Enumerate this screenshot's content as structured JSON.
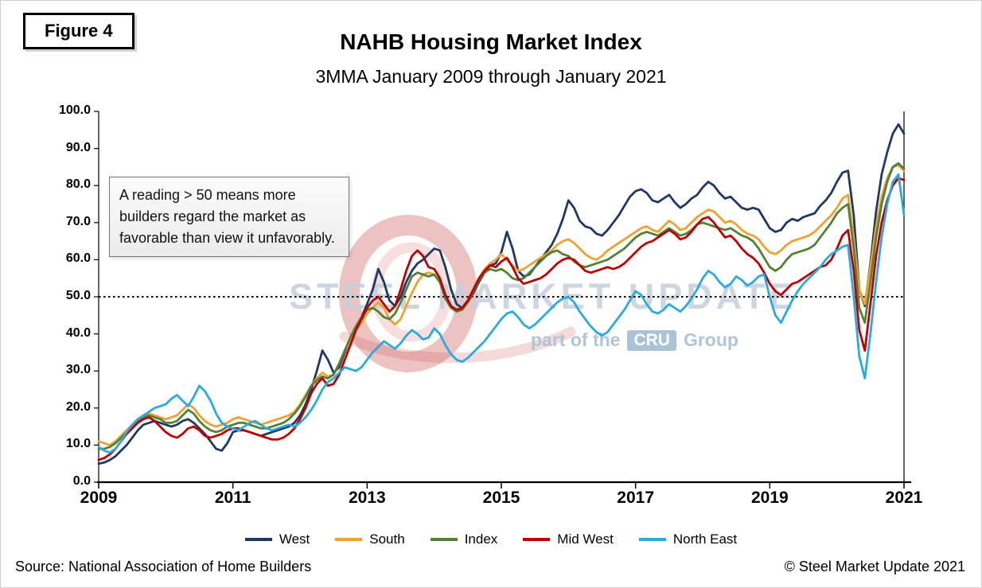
{
  "figure_label": "Figure 4",
  "title": "NAHB Housing Market Index",
  "subtitle": "3MMA January 2009 through January 2021",
  "annotation": "A reading > 50 means more builders regard the market as favorable than view it unfavorably.",
  "watermark": {
    "line1": "STEEL MARKET UPDATE",
    "line2_prefix": "part of the",
    "line2_badge": "CRU",
    "line2_suffix": "Group"
  },
  "footer": {
    "source": "Source: National Association of Home Builders",
    "copyright": "© Steel Market Update 2021"
  },
  "chart_data": {
    "type": "line",
    "title": "NAHB Housing Market Index",
    "subtitle": "3MMA January 2009 through January 2021",
    "x_start_year": 2009,
    "x_months": 145,
    "x_tick_months": [
      0,
      24,
      48,
      72,
      96,
      120,
      144
    ],
    "x_tick_labels": [
      "2009",
      "2011",
      "2013",
      "2015",
      "2017",
      "2019",
      "2021"
    ],
    "y_ticks": [
      0,
      10,
      20,
      30,
      40,
      50,
      60,
      70,
      80,
      90,
      100
    ],
    "y_tick_labels": [
      "0.0",
      "10.0",
      "20.0",
      "30.0",
      "40.0",
      "50.0",
      "60.0",
      "70.0",
      "80.0",
      "90.0",
      "100.0"
    ],
    "ylim": [
      0,
      100
    ],
    "grid": false,
    "legend_position": "bottom",
    "reference_line": {
      "value": 50,
      "style": "dotted",
      "color": "#000000"
    },
    "series": [
      {
        "name": "West",
        "color": "#1F3864",
        "values": [
          5.0,
          5.3,
          6.0,
          7.0,
          8.5,
          10.0,
          12.0,
          14.0,
          15.5,
          16.0,
          16.5,
          16.0,
          15.5,
          15.0,
          15.5,
          16.5,
          17.0,
          16.0,
          14.5,
          13.0,
          11.0,
          9.0,
          8.5,
          10.5,
          13.5,
          14.0,
          14.0,
          13.5,
          13.0,
          12.5,
          13.0,
          13.5,
          14.0,
          14.5,
          15.0,
          16.0,
          18.0,
          21.0,
          25.0,
          30.0,
          35.5,
          33.0,
          29.5,
          31.0,
          35.0,
          39.0,
          42.0,
          44.5,
          48.0,
          52.0,
          57.5,
          54.0,
          49.0,
          47.5,
          50.0,
          54.0,
          57.0,
          59.0,
          60.0,
          61.5,
          63.0,
          62.5,
          58.0,
          52.0,
          48.0,
          47.0,
          48.5,
          51.0,
          54.0,
          56.5,
          58.5,
          59.0,
          62.0,
          67.5,
          63.0,
          57.0,
          55.5,
          56.0,
          58.0,
          60.0,
          62.0,
          64.0,
          67.0,
          71.0,
          76.0,
          74.0,
          70.5,
          69.0,
          68.5,
          67.0,
          66.5,
          68.0,
          70.0,
          72.0,
          74.5,
          77.0,
          78.5,
          79.0,
          78.0,
          76.0,
          75.5,
          76.5,
          77.5,
          75.5,
          74.0,
          75.0,
          76.5,
          77.5,
          79.5,
          81.0,
          80.0,
          78.0,
          76.5,
          77.0,
          75.5,
          74.0,
          73.5,
          74.0,
          73.5,
          71.0,
          68.5,
          67.5,
          68.0,
          70.0,
          71.0,
          70.5,
          71.5,
          72.0,
          72.5,
          74.5,
          76.0,
          78.0,
          81.0,
          83.5,
          84.0,
          72.0,
          52.0,
          47.5,
          59.0,
          73.0,
          83.0,
          89.0,
          94.0,
          96.5,
          94.0
        ]
      },
      {
        "name": "South",
        "color": "#F0A132",
        "values": [
          11.0,
          10.5,
          10.0,
          11.0,
          12.5,
          14.0,
          15.5,
          17.0,
          18.0,
          18.5,
          18.0,
          17.5,
          17.0,
          17.5,
          18.0,
          19.5,
          21.0,
          20.0,
          18.0,
          16.5,
          15.5,
          15.0,
          15.5,
          16.0,
          17.0,
          17.5,
          17.0,
          16.5,
          16.0,
          15.5,
          16.0,
          16.5,
          17.0,
          17.5,
          18.0,
          19.0,
          21.0,
          23.5,
          26.0,
          28.0,
          29.5,
          28.5,
          29.0,
          32.0,
          35.5,
          38.5,
          41.0,
          43.0,
          45.5,
          47.0,
          48.5,
          47.0,
          44.0,
          42.5,
          44.0,
          47.5,
          51.0,
          54.0,
          56.0,
          56.5,
          56.0,
          54.0,
          50.0,
          47.5,
          46.5,
          47.0,
          49.0,
          52.0,
          55.0,
          57.5,
          59.0,
          60.0,
          61.5,
          60.0,
          58.5,
          57.0,
          57.5,
          58.5,
          59.5,
          60.5,
          61.5,
          62.5,
          64.0,
          65.0,
          65.5,
          64.5,
          63.0,
          61.5,
          60.5,
          60.0,
          61.0,
          62.5,
          63.5,
          64.5,
          65.5,
          66.5,
          67.5,
          68.5,
          69.0,
          68.0,
          67.5,
          69.0,
          70.5,
          69.5,
          68.0,
          68.5,
          70.0,
          71.5,
          72.5,
          73.5,
          73.0,
          71.5,
          70.0,
          70.5,
          69.5,
          68.0,
          67.0,
          66.5,
          65.5,
          63.5,
          62.0,
          61.5,
          62.5,
          64.0,
          65.0,
          65.5,
          66.0,
          66.5,
          67.5,
          69.0,
          70.5,
          72.0,
          74.0,
          76.5,
          77.5,
          66.0,
          52.0,
          48.0,
          58.0,
          69.0,
          77.0,
          82.0,
          85.0,
          85.5,
          84.0
        ]
      },
      {
        "name": "Index",
        "color": "#538135",
        "values": [
          9.0,
          9.0,
          9.5,
          10.5,
          12.0,
          13.5,
          15.0,
          16.5,
          17.5,
          18.0,
          17.5,
          17.0,
          16.0,
          16.0,
          16.5,
          18.0,
          19.5,
          18.5,
          16.5,
          15.0,
          14.0,
          13.5,
          14.0,
          15.0,
          15.5,
          16.0,
          16.0,
          15.5,
          15.0,
          14.5,
          14.5,
          15.0,
          15.5,
          16.0,
          17.0,
          18.5,
          20.5,
          23.0,
          26.0,
          27.5,
          28.5,
          28.0,
          29.0,
          32.0,
          35.5,
          39.0,
          42.0,
          44.5,
          46.5,
          47.0,
          46.0,
          44.5,
          44.0,
          45.5,
          48.5,
          52.0,
          55.5,
          56.5,
          56.0,
          55.5,
          56.0,
          54.0,
          49.5,
          47.0,
          46.0,
          46.5,
          48.5,
          51.5,
          54.5,
          56.5,
          57.5,
          57.0,
          57.5,
          56.5,
          55.0,
          54.5,
          55.0,
          56.5,
          58.0,
          59.5,
          61.0,
          62.0,
          62.5,
          61.5,
          61.0,
          59.5,
          58.5,
          58.0,
          58.5,
          59.0,
          59.5,
          60.0,
          61.0,
          62.0,
          63.0,
          64.5,
          66.0,
          67.0,
          67.5,
          67.0,
          66.5,
          67.5,
          68.5,
          67.5,
          66.5,
          67.0,
          68.0,
          69.5,
          70.0,
          69.5,
          69.0,
          68.5,
          68.0,
          68.5,
          67.5,
          66.5,
          66.0,
          65.0,
          63.0,
          60.5,
          58.0,
          57.0,
          58.0,
          60.0,
          61.5,
          62.0,
          62.5,
          63.0,
          64.0,
          66.0,
          68.0,
          70.0,
          72.5,
          74.0,
          75.0,
          63.0,
          47.0,
          43.0,
          54.0,
          66.0,
          75.0,
          81.0,
          85.0,
          86.0,
          84.5
        ]
      },
      {
        "name": "Mid West",
        "color": "#C00000",
        "values": [
          6.0,
          6.5,
          7.5,
          9.0,
          11.0,
          13.0,
          14.5,
          16.0,
          17.0,
          17.5,
          16.5,
          15.0,
          13.5,
          12.5,
          12.0,
          13.0,
          14.5,
          15.0,
          14.0,
          12.5,
          12.0,
          12.5,
          13.0,
          14.0,
          14.5,
          14.5,
          14.0,
          13.5,
          13.0,
          12.5,
          12.0,
          11.5,
          11.5,
          12.0,
          13.0,
          14.5,
          17.0,
          20.0,
          24.0,
          26.5,
          28.0,
          26.0,
          26.5,
          29.0,
          33.0,
          37.0,
          41.0,
          44.0,
          47.0,
          49.0,
          50.0,
          48.0,
          46.0,
          47.5,
          52.0,
          57.0,
          61.0,
          62.5,
          61.0,
          58.0,
          57.5,
          55.0,
          50.5,
          47.5,
          46.5,
          47.0,
          49.0,
          52.0,
          55.0,
          57.0,
          58.5,
          58.0,
          59.5,
          60.5,
          58.0,
          55.0,
          53.5,
          54.0,
          54.5,
          55.0,
          56.0,
          57.5,
          59.0,
          60.0,
          60.5,
          60.0,
          58.5,
          57.0,
          56.5,
          57.0,
          57.5,
          58.0,
          57.5,
          58.0,
          59.0,
          60.5,
          62.0,
          63.5,
          64.5,
          65.0,
          66.0,
          67.0,
          68.0,
          67.0,
          65.5,
          66.0,
          67.5,
          69.5,
          71.0,
          71.5,
          70.0,
          68.0,
          66.0,
          66.5,
          65.0,
          63.0,
          61.5,
          60.5,
          59.0,
          56.5,
          53.5,
          51.5,
          50.5,
          52.0,
          53.5,
          54.0,
          55.0,
          56.0,
          57.0,
          58.0,
          58.5,
          60.0,
          63.0,
          66.5,
          68.0,
          57.0,
          41.0,
          35.5,
          48.0,
          61.0,
          70.0,
          76.0,
          80.0,
          82.0,
          81.5
        ]
      },
      {
        "name": "North East",
        "color": "#29ABE2",
        "values": [
          9.5,
          8.5,
          8.0,
          9.0,
          11.0,
          13.5,
          15.5,
          17.0,
          18.0,
          19.0,
          20.0,
          20.5,
          21.0,
          22.5,
          23.5,
          22.0,
          20.5,
          23.0,
          26.0,
          24.5,
          22.0,
          18.5,
          16.0,
          15.0,
          14.5,
          14.0,
          15.0,
          16.0,
          16.5,
          15.5,
          14.5,
          14.0,
          14.5,
          15.0,
          15.5,
          15.0,
          16.0,
          17.5,
          19.5,
          22.0,
          25.0,
          27.0,
          28.0,
          29.5,
          31.0,
          30.5,
          30.0,
          31.0,
          33.0,
          35.0,
          36.5,
          38.0,
          37.0,
          36.0,
          37.5,
          39.5,
          41.0,
          40.0,
          38.5,
          39.0,
          41.5,
          40.0,
          37.0,
          34.5,
          33.0,
          32.5,
          33.5,
          35.0,
          36.5,
          38.0,
          40.0,
          42.0,
          44.0,
          45.5,
          46.0,
          44.5,
          42.5,
          41.5,
          42.5,
          44.0,
          45.5,
          47.0,
          48.5,
          49.5,
          50.0,
          48.5,
          46.0,
          44.0,
          42.0,
          40.5,
          39.5,
          40.5,
          42.5,
          44.5,
          46.5,
          49.0,
          51.5,
          50.5,
          48.0,
          46.0,
          45.5,
          46.5,
          48.0,
          47.0,
          46.0,
          47.5,
          49.5,
          52.0,
          55.0,
          57.0,
          56.0,
          54.0,
          52.5,
          53.5,
          55.5,
          54.5,
          53.0,
          54.0,
          55.5,
          56.0,
          50.0,
          45.0,
          43.0,
          46.0,
          49.0,
          51.5,
          53.5,
          55.0,
          56.5,
          58.0,
          60.0,
          61.5,
          62.5,
          63.5,
          64.0,
          50.0,
          34.0,
          28.0,
          40.0,
          54.0,
          66.0,
          75.0,
          81.0,
          83.0,
          72.0
        ]
      }
    ]
  }
}
